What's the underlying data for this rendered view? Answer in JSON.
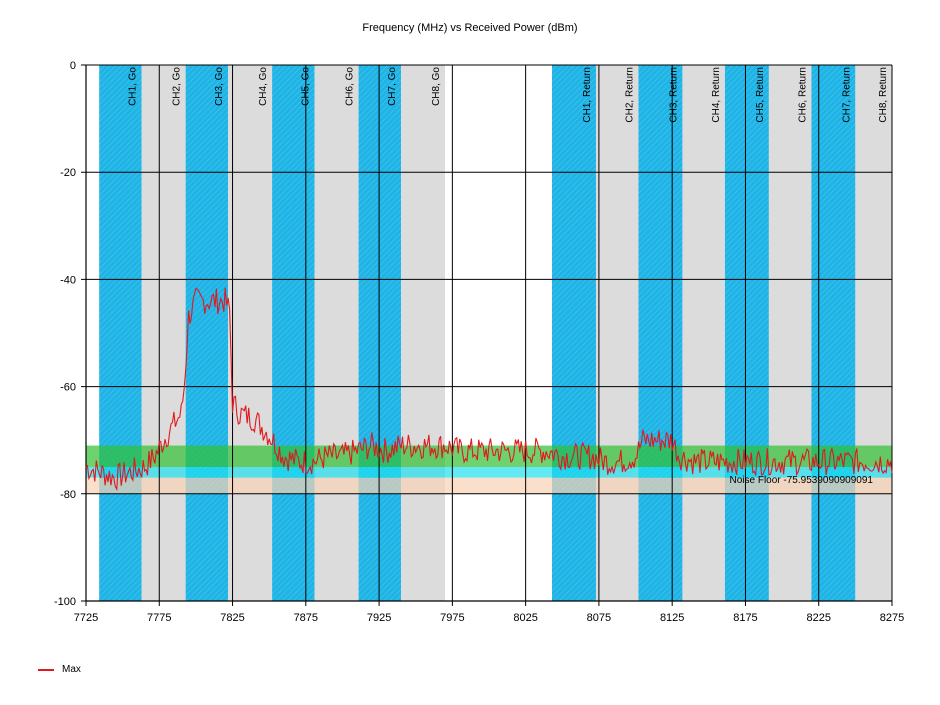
{
  "chart_data": {
    "type": "line",
    "title": "Frequency (MHz) vs Received Power (dBm)",
    "xlabel": "",
    "ylabel": "",
    "xlim": [
      7725,
      8275
    ],
    "ylim": [
      -100,
      0
    ],
    "x_ticks": [
      "7725",
      "7775",
      "7825",
      "7875",
      "7925",
      "7975",
      "8025",
      "8075",
      "8125",
      "8175",
      "8225",
      "8275"
    ],
    "y_ticks": [
      "0",
      "-20",
      "-40",
      "-60",
      "-80",
      "-100"
    ],
    "grid": true,
    "legend_position": "bottom-left",
    "series": [
      {
        "name": "Max",
        "color": "#e0191f",
        "x": [
          7725,
          7735,
          7745,
          7755,
          7765,
          7772,
          7778,
          7785,
          7790,
          7792,
          7795,
          7800,
          7810,
          7820,
          7823,
          7825,
          7830,
          7840,
          7850,
          7860,
          7870,
          7880,
          7890,
          7900,
          7910,
          7920,
          7930,
          7940,
          7950,
          7960,
          7970,
          7980,
          7990,
          8000,
          8010,
          8020,
          8030,
          8040,
          8050,
          8060,
          8070,
          8080,
          8090,
          8100,
          8105,
          8115,
          8125,
          8130,
          8140,
          8150,
          8160,
          8175,
          8190,
          8205,
          8220,
          8235,
          8250,
          8265,
          8275
        ],
        "y": [
          -75,
          -76,
          -77,
          -76,
          -75,
          -73,
          -70,
          -67,
          -65,
          -60,
          -47,
          -44,
          -44,
          -44,
          -46,
          -63,
          -65,
          -66,
          -69,
          -73,
          -74,
          -74,
          -73,
          -73,
          -72,
          -71,
          -72,
          -71,
          -71,
          -71,
          -71,
          -72,
          -72,
          -72,
          -72,
          -72,
          -72,
          -72,
          -73,
          -73,
          -73,
          -74,
          -74,
          -73,
          -70,
          -70,
          -70,
          -73,
          -74,
          -74,
          -74,
          -74,
          -74,
          -74,
          -74,
          -74,
          -74,
          -74,
          -74
        ]
      }
    ],
    "bands": [
      {
        "label": "CH1, Go",
        "from": 7734,
        "to": 7763,
        "color": "#1eb4e6"
      },
      {
        "label": "CH2, Go",
        "from": 7763,
        "to": 7793,
        "color": "#dcdcdc"
      },
      {
        "label": "CH3, Go",
        "from": 7793,
        "to": 7822,
        "color": "#1eb4e6"
      },
      {
        "label": "CH4, Go",
        "from": 7822,
        "to": 7852,
        "color": "#dcdcdc"
      },
      {
        "label": "CH5, Go",
        "from": 7852,
        "to": 7881,
        "color": "#1eb4e6"
      },
      {
        "label": "CH6, Go",
        "from": 7881,
        "to": 7911,
        "color": "#dcdcdc"
      },
      {
        "label": "CH7, Go",
        "from": 7911,
        "to": 7940,
        "color": "#1eb4e6"
      },
      {
        "label": "CH8, Go",
        "from": 7940,
        "to": 7970,
        "color": "#dcdcdc"
      },
      {
        "label": "CH1, Return",
        "from": 8043,
        "to": 8073,
        "color": "#1eb4e6"
      },
      {
        "label": "CH2, Return",
        "from": 8073,
        "to": 8102,
        "color": "#dcdcdc"
      },
      {
        "label": "CH3, Return",
        "from": 8102,
        "to": 8132,
        "color": "#1eb4e6"
      },
      {
        "label": "CH4, Return",
        "from": 8132,
        "to": 8161,
        "color": "#dcdcdc"
      },
      {
        "label": "CH5, Return",
        "from": 8161,
        "to": 8191,
        "color": "#1eb4e6"
      },
      {
        "label": "CH6, Return",
        "from": 8191,
        "to": 8220,
        "color": "#dcdcdc"
      },
      {
        "label": "CH7, Return",
        "from": 8220,
        "to": 8250,
        "color": "#1eb4e6"
      },
      {
        "label": "CH8, Return",
        "from": 8250,
        "to": 8275,
        "color": "#dcdcdc"
      }
    ],
    "horizontal_strips": [
      {
        "from": -75,
        "to": -71,
        "color": "#30c030"
      },
      {
        "from": -77,
        "to": -75,
        "color": "#20e0f0"
      },
      {
        "from": -80,
        "to": -77,
        "color": "#f8d2b4"
      }
    ],
    "annotations": [
      {
        "text": "Noise Floor -75.9539090909091",
        "x": 8262,
        "y": -78
      }
    ]
  }
}
